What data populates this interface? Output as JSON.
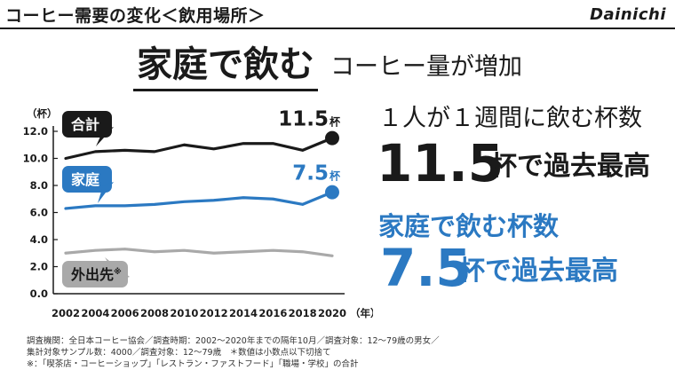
{
  "header": {
    "title": "コーヒー需要の変化＜飲用場所＞",
    "brand": "Dainichi"
  },
  "headline": {
    "main": "家庭で飲む",
    "sub": "コーヒー量が増加"
  },
  "stats": {
    "line1": "１人が１週間に飲む杯数",
    "value1": "11.5",
    "unit1": "杯で過去最高",
    "line2": "家庭で飲む杯数",
    "value2": "7.5",
    "unit2": "杯で過去最高"
  },
  "footnote": {
    "line1": "調査機関：全日本コーヒー協会／調査時期：2002〜2020年までの隔年10月／調査対象：12〜79歳の男女／",
    "line2": "集計対象サンプル数：4000／調査対象：12〜79歳　＊数値は小数点以下切捨て",
    "line3": "※：「喫茶店・コーヒーショップ」「レストラン・ファストフード」「職場・学校」の合計"
  },
  "colors": {
    "total": "#1a1a1a",
    "home": "#2b79c2",
    "outside": "#a9a9a9"
  },
  "chart_data": {
    "type": "line",
    "ylabel": "（杯）",
    "xlabel": "（年）",
    "ylim": [
      0,
      12
    ],
    "yticks": [
      "0.0",
      "2.0",
      "4.0",
      "6.0",
      "8.0",
      "10.0",
      "12.0"
    ],
    "x": [
      "2002",
      "2004",
      "2006",
      "2008",
      "2010",
      "2012",
      "2014",
      "2016",
      "2018",
      "2020"
    ],
    "series": [
      {
        "name": "合計",
        "values": [
          10.0,
          10.5,
          10.6,
          10.5,
          11.0,
          10.7,
          11.1,
          11.1,
          10.6,
          11.5
        ],
        "end_label": "11.5",
        "end_unit": "杯"
      },
      {
        "name": "家庭",
        "values": [
          6.3,
          6.5,
          6.5,
          6.6,
          6.8,
          6.9,
          7.1,
          7.0,
          6.6,
          7.5
        ],
        "end_label": "7.5",
        "end_unit": "杯"
      },
      {
        "name": "外出先",
        "name_suffix": "※",
        "values": [
          3.0,
          3.2,
          3.3,
          3.1,
          3.2,
          3.0,
          3.1,
          3.2,
          3.1,
          2.8
        ]
      }
    ],
    "grid": false
  }
}
